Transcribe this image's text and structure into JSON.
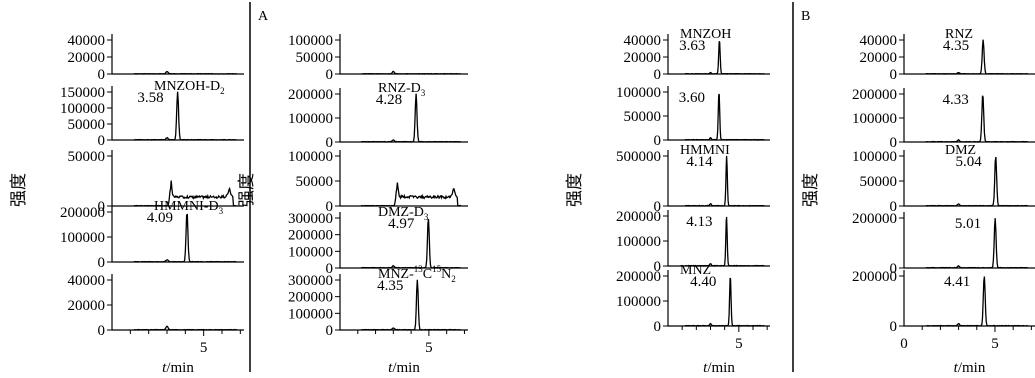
{
  "chart_data": {
    "type": "line",
    "x_axis_label_var": "t",
    "x_axis_label_unit": "/min",
    "y_axis_label": "强度",
    "x_tick_label": "5",
    "x_zero_label": "0",
    "panels": [
      {
        "panel_label": "A",
        "columns": [
          {
            "subplots": [
              {
                "analyte": "",
                "peak_label": "",
                "y_ticks": [
                  "40000",
                  "20000",
                  "0"
                ],
                "y_values": [
                  40000,
                  20000,
                  0
                ],
                "peak_value": 0
              },
              {
                "analyte": "MNZOH-D2",
                "peak_label": "3.58",
                "y_ticks": [
                  "150000",
                  "100000",
                  "50000",
                  "0"
                ],
                "y_values": [
                  150000,
                  100000,
                  50000,
                  0
                ],
                "peak_value": 3.58
              },
              {
                "analyte": "",
                "peak_label": "",
                "y_ticks": [
                  "50000",
                  "0"
                ],
                "y_values": [
                  50000,
                  0
                ],
                "peak_value": 0
              },
              {
                "analyte": "HMMNI-D3",
                "peak_label": "4.09",
                "y_ticks": [
                  "200000",
                  "100000",
                  "0"
                ],
                "y_values": [
                  200000,
                  100000,
                  0
                ],
                "peak_value": 4.09
              },
              {
                "analyte": "",
                "peak_label": "",
                "y_ticks": [
                  "40000",
                  "20000",
                  "0"
                ],
                "y_values": [
                  40000,
                  20000,
                  0
                ],
                "peak_value": 0
              }
            ]
          },
          {
            "subplots": [
              {
                "analyte": "",
                "peak_label": "",
                "y_ticks": [
                  "100000",
                  "50000",
                  "0"
                ],
                "y_values": [
                  100000,
                  50000,
                  0
                ],
                "peak_value": 0
              },
              {
                "analyte": "RNZ-D3",
                "peak_label": "4.28",
                "y_ticks": [
                  "200000",
                  "100000",
                  "0"
                ],
                "y_values": [
                  200000,
                  100000,
                  0
                ],
                "peak_value": 4.28
              },
              {
                "analyte": "",
                "peak_label": "",
                "y_ticks": [
                  "100000",
                  "50000",
                  "0"
                ],
                "y_values": [
                  100000,
                  50000,
                  0
                ],
                "peak_value": 0
              },
              {
                "analyte": "DMZ-D3",
                "peak_label": "4.97",
                "y_ticks": [
                  "300000",
                  "200000",
                  "100000",
                  "0"
                ],
                "y_values": [
                  300000,
                  200000,
                  100000,
                  0
                ],
                "peak_value": 4.97
              },
              {
                "analyte": "MNZ-13C15N2",
                "peak_label": "4.35",
                "y_ticks": [
                  "300000",
                  "200000",
                  "100000",
                  "0"
                ],
                "y_values": [
                  300000,
                  200000,
                  100000,
                  0
                ],
                "peak_value": 4.35
              }
            ]
          }
        ]
      },
      {
        "panel_label": "B",
        "columns": [
          {
            "subplots": [
              {
                "analyte": "MNZOH",
                "peak_label": "3.63",
                "y_ticks": [
                  "40000",
                  "20000",
                  "0"
                ],
                "y_values": [
                  40000,
                  20000,
                  0
                ],
                "peak_value": 3.63
              },
              {
                "analyte": "",
                "peak_label": "3.60",
                "y_ticks": [
                  "100000",
                  "50000",
                  "0"
                ],
                "y_values": [
                  100000,
                  50000,
                  0
                ],
                "peak_value": 3.6
              },
              {
                "analyte": "HMMNI",
                "peak_label": "4.14",
                "y_ticks": [
                  "500000",
                  "0"
                ],
                "y_values": [
                  500000,
                  0
                ],
                "peak_value": 4.14
              },
              {
                "analyte": "",
                "peak_label": "4.13",
                "y_ticks": [
                  "200000",
                  "100000",
                  "0"
                ],
                "y_values": [
                  200000,
                  100000,
                  0
                ],
                "peak_value": 4.13
              },
              {
                "analyte": "MNZ",
                "peak_label": "4.40",
                "y_ticks": [
                  "200000",
                  "100000",
                  "0"
                ],
                "y_values": [
                  200000,
                  100000,
                  0
                ],
                "peak_value": 4.4
              }
            ]
          },
          {
            "subplots": [
              {
                "analyte": "RNZ",
                "peak_label": "4.35",
                "y_ticks": [
                  "40000",
                  "20000",
                  "0"
                ],
                "y_values": [
                  40000,
                  20000,
                  0
                ],
                "peak_value": 4.35
              },
              {
                "analyte": "",
                "peak_label": "4.33",
                "y_ticks": [
                  "200000",
                  "100000",
                  "0"
                ],
                "y_values": [
                  200000,
                  100000,
                  0
                ],
                "peak_value": 4.33
              },
              {
                "analyte": "DMZ",
                "peak_label": "5.04",
                "y_ticks": [
                  "100000",
                  "50000",
                  "0"
                ],
                "y_values": [
                  100000,
                  50000,
                  0
                ],
                "peak_value": 5.04
              },
              {
                "analyte": "",
                "peak_label": "5.01",
                "y_ticks": [
                  "200000",
                  "0"
                ],
                "y_values": [
                  200000,
                  0
                ],
                "peak_value": 5.01
              },
              {
                "analyte": "",
                "peak_label": "4.41",
                "y_ticks": [
                  "200000",
                  "0"
                ],
                "y_values": [
                  200000,
                  0
                ],
                "peak_value": 4.41
              }
            ]
          }
        ]
      }
    ]
  }
}
